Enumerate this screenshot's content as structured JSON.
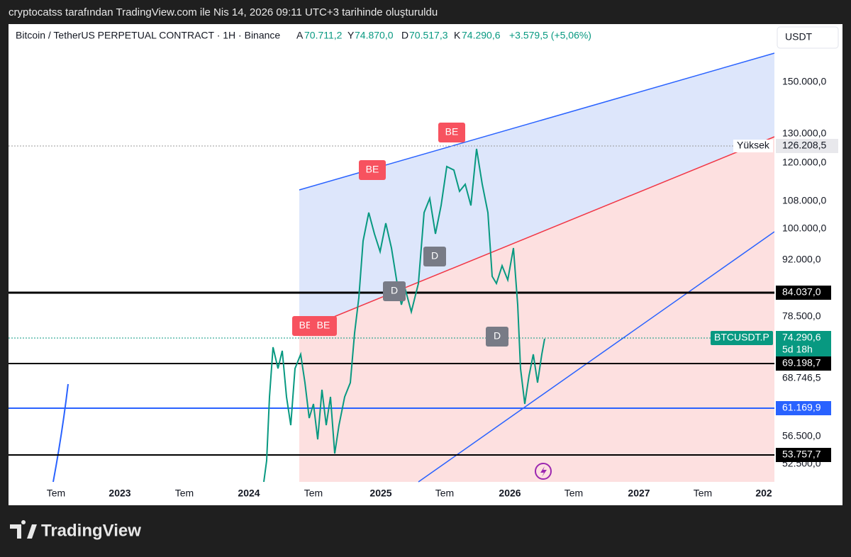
{
  "header": {
    "caption": "cryptocatss tarafından TradingView.com ile Nis 14, 2026 09:11 UTC+3 tarihinde oluşturuldu"
  },
  "symbol": {
    "name": "Bitcoin / TetherUS PERPETUAL CONTRACT · 1H · Binance",
    "ohlc": [
      {
        "label": "A",
        "value": "70.711,2"
      },
      {
        "label": "Y",
        "value": "74.870,0"
      },
      {
        "label": "D",
        "value": "70.517,3"
      },
      {
        "label": "K",
        "value": "74.290,6"
      }
    ],
    "change": "+3.579,5 (+5,06%)"
  },
  "price_axis": {
    "currency": "USDT",
    "labels": [
      "150.000,0",
      "130.000,0",
      "120.000,0",
      "108.000,0",
      "100.000,0",
      "92.000,0",
      "78.500,0",
      "68.746,5",
      "56.500,0",
      "52.500,0"
    ]
  },
  "price_tags": {
    "high_label": "Yüksek",
    "high": "126.208,5",
    "level_1": "84.037,0",
    "symbol_tag": "BTCUSDT.P",
    "last": "74.290,6",
    "countdown": "5d 18h",
    "level_2": "69.198,7",
    "level_3": "61.169,9",
    "level_4": "53.757,7"
  },
  "time_axis": {
    "labels": [
      "Tem",
      "2023",
      "Tem",
      "2024",
      "Tem",
      "2025",
      "Tem",
      "2026",
      "Tem",
      "2027",
      "Tem",
      "202"
    ]
  },
  "badges": {
    "be": [
      "BE",
      "BE",
      "BE",
      "BE"
    ],
    "d": [
      "D",
      "D",
      "D"
    ]
  },
  "footer": {
    "brand": "TradingView"
  }
}
